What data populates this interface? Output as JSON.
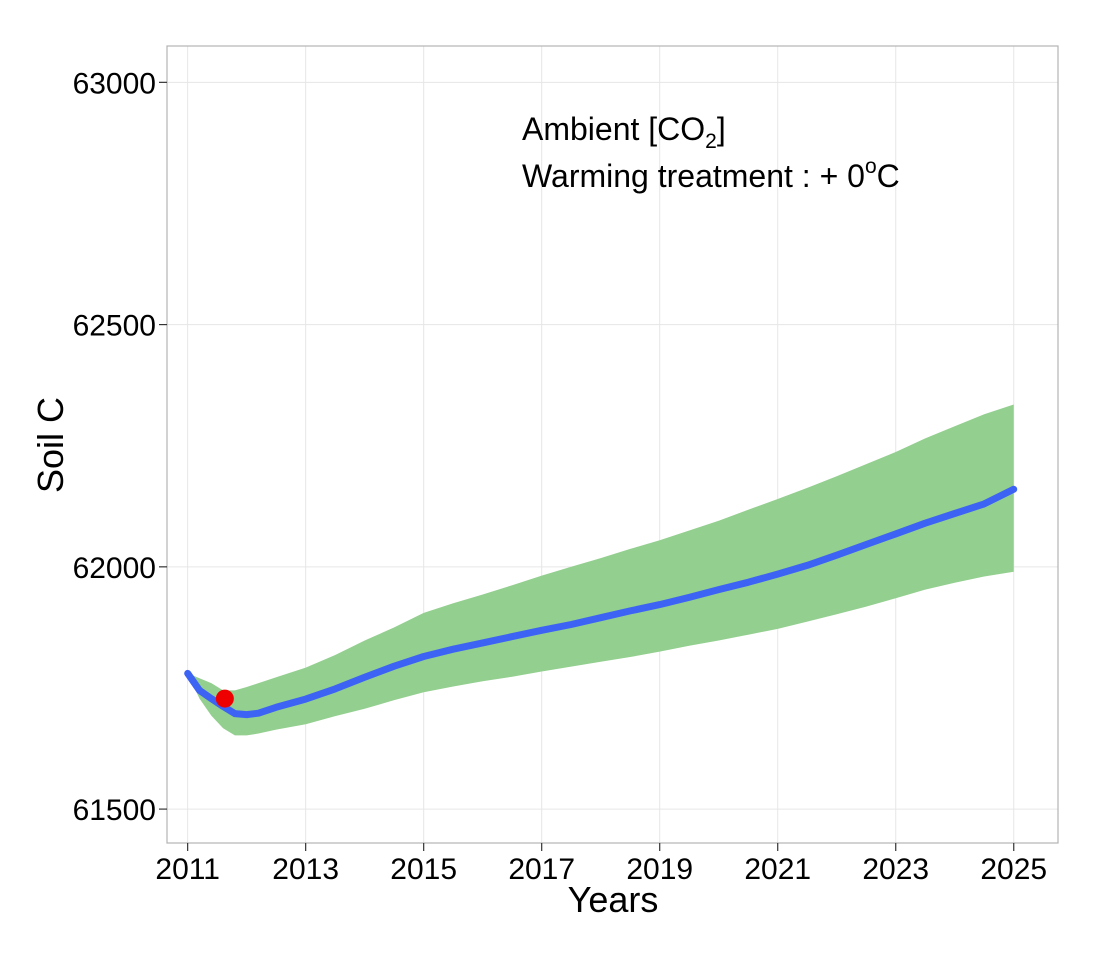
{
  "chart_data": {
    "type": "line",
    "title": "",
    "xlabel": "Years",
    "ylabel": "Soil C",
    "xlim": [
      2010.65,
      2025.75
    ],
    "ylim": [
      61430,
      63075
    ],
    "x_ticks": [
      2011,
      2013,
      2015,
      2017,
      2019,
      2021,
      2023,
      2025
    ],
    "x_tick_labels": [
      "2011",
      "2013",
      "2015",
      "2017",
      "2019",
      "2021",
      "2023",
      "2025"
    ],
    "y_ticks": [
      61500,
      62000,
      62500,
      63000
    ],
    "y_tick_labels": [
      "61500",
      "62000",
      "62500",
      "63000"
    ],
    "grid": true,
    "annotations": {
      "line1_prefix": "Ambient [CO",
      "line1_sub": "2",
      "line1_suffix": "]",
      "line2_prefix": "Warming treatment :  + 0",
      "line2_sup": "o",
      "line2_suffix": "C"
    },
    "colors": {
      "line": "#3d63f5",
      "band": "#93cf8f",
      "point": "#ee0000",
      "grid": "#e6e6e6",
      "frame": "#b3b3b3"
    },
    "series": [
      {
        "type": "line",
        "x": [
          2011.0,
          2011.2,
          2011.4,
          2011.6,
          2011.8,
          2012.0,
          2012.2,
          2012.5,
          2013.0,
          2013.5,
          2014.0,
          2014.5,
          2015.0,
          2015.5,
          2016.0,
          2016.5,
          2017.0,
          2017.5,
          2018.0,
          2018.5,
          2019.0,
          2019.5,
          2020.0,
          2020.5,
          2021.0,
          2021.5,
          2022.0,
          2022.5,
          2023.0,
          2023.5,
          2024.0,
          2024.5,
          2025.0
        ],
        "y": [
          61780,
          61745,
          61728,
          61712,
          61697,
          61695,
          61698,
          61710,
          61727,
          61748,
          61772,
          61795,
          61815,
          61830,
          61843,
          61856,
          61869,
          61881,
          61895,
          61909,
          61922,
          61937,
          61953,
          61968,
          61985,
          62003,
          62024,
          62046,
          62068,
          62090,
          62110,
          62130,
          62160
        ]
      },
      {
        "type": "band",
        "x": [
          2011.0,
          2011.2,
          2011.4,
          2011.6,
          2011.8,
          2012.0,
          2012.2,
          2012.5,
          2013.0,
          2013.5,
          2014.0,
          2014.5,
          2015.0,
          2015.5,
          2016.0,
          2016.5,
          2017.0,
          2017.5,
          2018.0,
          2018.5,
          2019.0,
          2019.5,
          2020.0,
          2020.5,
          2021.0,
          2021.5,
          2022.0,
          2022.5,
          2023.0,
          2023.5,
          2024.0,
          2024.5,
          2025.0
        ],
        "upper": [
          61780,
          61770,
          61760,
          61745,
          61745,
          61752,
          61760,
          61772,
          61792,
          61818,
          61848,
          61875,
          61905,
          61925,
          61943,
          61962,
          61982,
          62000,
          62018,
          62037,
          62055,
          62075,
          62095,
          62118,
          62140,
          62163,
          62187,
          62212,
          62237,
          62265,
          62290,
          62315,
          62335
        ],
        "lower": [
          61780,
          61728,
          61693,
          61667,
          61652,
          61652,
          61656,
          61664,
          61675,
          61692,
          61707,
          61725,
          61741,
          61753,
          61764,
          61773,
          61784,
          61794,
          61804,
          61814,
          61825,
          61837,
          61848,
          61860,
          61872,
          61887,
          61902,
          61918,
          61935,
          61953,
          61967,
          61980,
          61990
        ]
      },
      {
        "type": "point",
        "x": 2011.63,
        "y": 61728
      }
    ]
  }
}
